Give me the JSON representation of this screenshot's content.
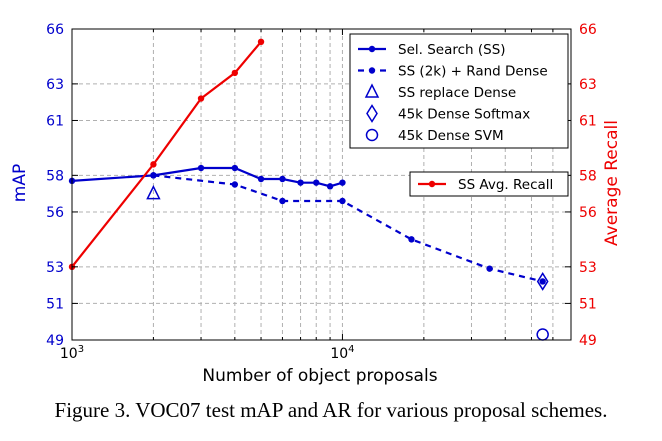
{
  "caption": "Figure 3. VOC07 test mAP and AR for various proposal schemes.",
  "chart_data": {
    "type": "line",
    "title": "",
    "xlabel": "Number of object proposals",
    "ylabel": "mAP",
    "y2label": "Average Recall",
    "x_scale": "log",
    "xlim": [
      1000,
      70000
    ],
    "ylim": [
      49,
      66
    ],
    "y2lim": [
      49,
      66
    ],
    "x_ticks": [
      {
        "value": 1000,
        "base": "10",
        "exp": "3"
      },
      {
        "value": 10000,
        "base": "10",
        "exp": "4"
      }
    ],
    "y_ticks": [
      "49",
      "51",
      "53",
      "56",
      "58",
      "61",
      "63",
      "66"
    ],
    "y2_ticks": [
      "49",
      "51",
      "53",
      "56",
      "58",
      "61",
      "63",
      "66"
    ],
    "grid": true,
    "legend_position": "top-right",
    "colors": {
      "map": "#0000cc",
      "recall": "#ee0000"
    },
    "series": [
      {
        "name": "Sel. Search (SS)",
        "axis": "left",
        "style": "solid",
        "color": "#0000cc",
        "x": [
          1000,
          2000,
          3000,
          4000,
          5000,
          6000,
          7000,
          8000,
          9000,
          10000
        ],
        "y": [
          57.7,
          58.0,
          58.4,
          58.4,
          57.8,
          57.8,
          57.6,
          57.6,
          57.4,
          57.6
        ]
      },
      {
        "name": "SS (2k) + Rand Dense",
        "axis": "left",
        "style": "dashed",
        "color": "#0000cc",
        "x": [
          2000,
          4000,
          6000,
          10000,
          18000,
          35000,
          55000
        ],
        "y": [
          58.0,
          57.5,
          56.6,
          56.6,
          54.5,
          52.9,
          52.2
        ]
      },
      {
        "name": "SS replace Dense",
        "axis": "left",
        "marker": "triangle",
        "color": "#0000cc",
        "x": [
          2000
        ],
        "y": [
          57.0
        ]
      },
      {
        "name": "45k Dense Softmax",
        "axis": "left",
        "marker": "diamond",
        "color": "#0000cc",
        "x": [
          55000
        ],
        "y": [
          52.2
        ]
      },
      {
        "name": "45k Dense SVM",
        "axis": "left",
        "marker": "circle",
        "color": "#0000cc",
        "x": [
          55000
        ],
        "y": [
          49.3
        ]
      },
      {
        "name": "SS Avg. Recall",
        "axis": "right",
        "style": "solid",
        "color": "#ee0000",
        "x": [
          1000,
          2000,
          3000,
          4000,
          5000
        ],
        "y": [
          53.0,
          58.6,
          62.2,
          63.6,
          65.3
        ]
      }
    ]
  }
}
